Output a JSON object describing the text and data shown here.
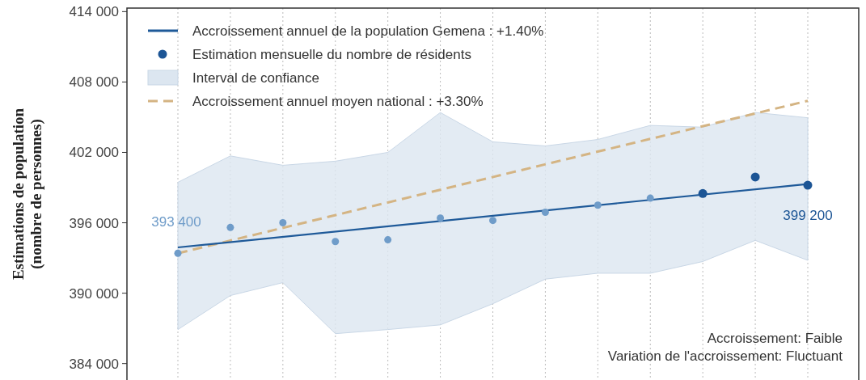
{
  "chart_data": {
    "type": "scatter",
    "ylabel": "Estimations de population\n(nombre de personnes)",
    "categories": [
      null,
      null,
      null,
      null,
      null,
      null,
      null,
      null,
      null,
      null,
      null,
      null,
      null
    ],
    "ylim": [
      382600,
      414300
    ],
    "yticks": [
      {
        "value": 384000,
        "label": "384 000"
      },
      {
        "value": 390000,
        "label": "390 000"
      },
      {
        "value": 396000,
        "label": "396 000"
      },
      {
        "value": 402000,
        "label": "402 000"
      },
      {
        "value": 408000,
        "label": "408 000"
      },
      {
        "value": 414000,
        "label": "414 000"
      }
    ],
    "grid": "x",
    "legend": "top left",
    "annotations": [
      "Accroissement: Faible",
      "Variation de l'accroissement: Fluctuant"
    ],
    "series": [
      {
        "name": "Interval de confiance",
        "type": "area",
        "color": "#dce6f0",
        "values": [
          null,
          null,
          null,
          null,
          null,
          null,
          null,
          null,
          null,
          null,
          null,
          null,
          null
        ],
        "lower": [
          386900,
          389800,
          390900,
          386550,
          386900,
          387300,
          389100,
          391200,
          391700,
          391700,
          392700,
          394500,
          392800
        ],
        "upper": [
          399450,
          401700,
          400900,
          401250,
          402000,
          405400,
          402900,
          402550,
          403100,
          404300,
          404150,
          405400,
          404950
        ]
      },
      {
        "name": "Accroissement annuel moyen national : +3.30%",
        "type": "line",
        "color": "#d4b483",
        "line_style": "dashed",
        "values": [
          393400,
          null,
          null,
          null,
          null,
          null,
          null,
          null,
          null,
          null,
          null,
          null,
          406400
        ]
      },
      {
        "name": "Accroissement annuel de la population Gemena : +1.40%",
        "type": "line",
        "color": "#1f5a99",
        "values": [
          393900,
          null,
          null,
          null,
          null,
          null,
          null,
          null,
          null,
          null,
          null,
          null,
          399300
        ]
      },
      {
        "name": "Estimation mensuelle du nombre de résidents",
        "marker": "circle",
        "color": "#1c5595",
        "colors": [
          "#6f9cc9",
          "#6f9cc9",
          "#6f9cc9",
          "#6f9cc9",
          "#6f9cc9",
          "#6f9cc9",
          "#6f9cc9",
          "#6f9cc9",
          "#6f9cc9",
          "#6f9cc9",
          "#1c5595",
          "#1c5595",
          "#1c5595"
        ],
        "values": [
          393400,
          395600,
          396000,
          394400,
          394550,
          396400,
          396200,
          396900,
          397500,
          398100,
          398500,
          399900,
          399200
        ],
        "value_labels": [
          "393 400",
          null,
          null,
          null,
          null,
          null,
          null,
          null,
          null,
          null,
          null,
          null,
          "399 200"
        ]
      }
    ]
  }
}
